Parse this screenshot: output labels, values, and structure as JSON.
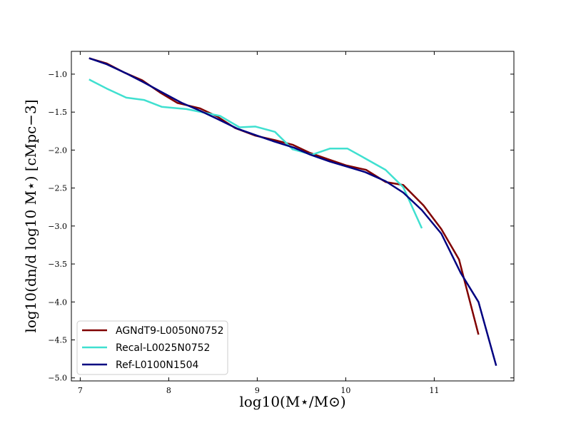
{
  "chart_data": {
    "type": "line",
    "title": "",
    "xlabel": "log10(M⋆/M⊙)",
    "ylabel": "log10(dn/d log10 M⋆) [cMpc−3]",
    "xlim": [
      6.9,
      11.9
    ],
    "ylim": [
      -5.04,
      -0.7
    ],
    "x_ticks": [
      7,
      8,
      9,
      10,
      11
    ],
    "x_tick_labels": [
      "7",
      "8",
      "9",
      "10",
      "11"
    ],
    "y_ticks": [
      -1.0,
      -1.5,
      -2.0,
      -2.5,
      -3.0,
      -3.5,
      -4.0,
      -4.5,
      -5.0
    ],
    "y_tick_labels": [
      "−1.0",
      "−1.5",
      "−2.0",
      "−2.5",
      "−3.0",
      "−3.5",
      "−4.0",
      "−4.5",
      "−5.0"
    ],
    "grid": false,
    "legend_position": "bottom-left",
    "series": [
      {
        "name": "AGNdT9-L0050N0752",
        "color": "#800000",
        "x": [
          7.1,
          7.3,
          7.5,
          7.7,
          7.9,
          8.1,
          8.35,
          8.55,
          8.75,
          8.98,
          9.2,
          9.4,
          9.6,
          9.8,
          10.0,
          10.23,
          10.45,
          10.65,
          10.88,
          11.08,
          11.28,
          11.5
        ],
        "y": [
          -0.79,
          -0.86,
          -0.98,
          -1.08,
          -1.24,
          -1.38,
          -1.45,
          -1.56,
          -1.71,
          -1.81,
          -1.87,
          -1.93,
          -2.04,
          -2.12,
          -2.2,
          -2.26,
          -2.42,
          -2.46,
          -2.73,
          -3.04,
          -3.44,
          -4.43
        ]
      },
      {
        "name": "Recal-L0025N0752",
        "color": "#40e0d0",
        "x": [
          7.1,
          7.3,
          7.52,
          7.72,
          7.92,
          8.2,
          8.58,
          8.8,
          8.98,
          9.2,
          9.4,
          9.62,
          9.82,
          10.02,
          10.22,
          10.45,
          10.65,
          10.86
        ],
        "y": [
          -1.07,
          -1.19,
          -1.31,
          -1.34,
          -1.43,
          -1.46,
          -1.55,
          -1.7,
          -1.69,
          -1.76,
          -1.99,
          -2.06,
          -1.98,
          -1.98,
          -2.11,
          -2.26,
          -2.49,
          -3.03
        ]
      },
      {
        "name": "Ref-L0100N1504",
        "color": "#000080",
        "x": [
          7.1,
          7.3,
          7.52,
          7.72,
          7.94,
          8.15,
          8.35,
          8.55,
          8.78,
          9.0,
          9.2,
          9.42,
          9.6,
          9.82,
          10.02,
          10.22,
          10.45,
          10.65,
          10.86,
          11.08,
          11.3,
          11.5,
          11.7
        ],
        "y": [
          -0.79,
          -0.87,
          -0.99,
          -1.11,
          -1.25,
          -1.38,
          -1.48,
          -1.59,
          -1.72,
          -1.81,
          -1.89,
          -1.97,
          -2.06,
          -2.15,
          -2.22,
          -2.29,
          -2.41,
          -2.56,
          -2.79,
          -3.1,
          -3.62,
          -4.0,
          -4.84
        ]
      }
    ]
  }
}
